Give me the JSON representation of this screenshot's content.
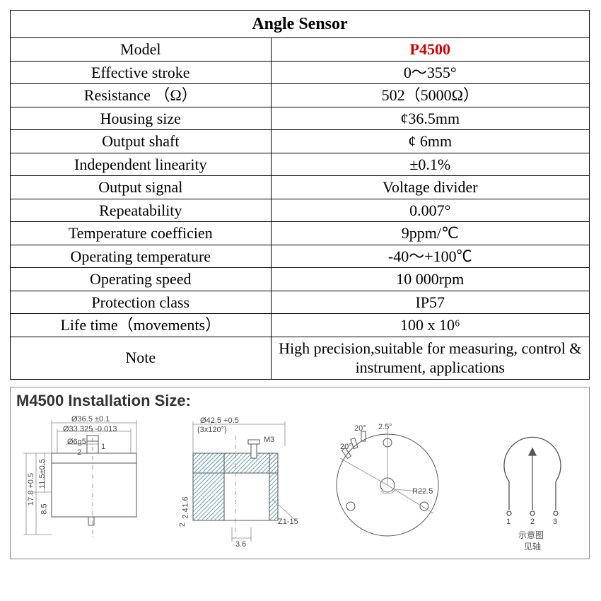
{
  "table": {
    "title": "Angle Sensor",
    "rows": [
      {
        "label": "Model",
        "value": "P4500",
        "model": true
      },
      {
        "label": "Effective stroke",
        "value": "0～355°"
      },
      {
        "label": "Resistance （Ω）",
        "value": "502（5000Ω）"
      },
      {
        "label": "Housing size",
        "value": "¢36.5mm"
      },
      {
        "label": "Output shaft",
        "value": "¢ 6mm"
      },
      {
        "label": "Independent linearity",
        "value": "±0.1%"
      },
      {
        "label": "Output signal",
        "value": "Voltage divider"
      },
      {
        "label": "Repeatability",
        "value": "0.007°"
      },
      {
        "label": "Temperature coefficien",
        "value": "9ppm/℃"
      },
      {
        "label": "Operating temperature",
        "value": "-40～+100℃"
      },
      {
        "label": "Operating speed",
        "value": "10 000rpm"
      },
      {
        "label": "Protection class",
        "value": "IP57"
      },
      {
        "label": "Life time（movements）",
        "value": "100 x 10⁶"
      }
    ],
    "note_label": "Note",
    "note_value": "High precision,suitable for measuring, control & instrument, applications"
  },
  "install": {
    "heading": "M4500 Installation Size:",
    "dwg_a": {
      "d_outer": "Ø36.5 ±0.1",
      "d_inner": "Ø33.325 -0.013",
      "shaft": "Ø6g5",
      "slot_w": "1",
      "slot_h": "2",
      "h_upper": "11.5±0.5",
      "h_total": "17.8 +0.5",
      "h_step": "8.5"
    },
    "dwg_b": {
      "bolt_circle": "Ø42.5 +0.5",
      "bolt_note": "(3x120°)",
      "thread": "M3",
      "z": "Z1-15",
      "depth": "3.6",
      "step1": "1.6",
      "step2": "2.4",
      "step3": "2"
    },
    "dwg_c": {
      "r": "R22.5",
      "ang_left": "20°",
      "ang_top": "2.5°",
      "ang_gap": "20°"
    },
    "dwg_d": {
      "pin1": "1",
      "pin2": "2",
      "pin3": "3",
      "cn1": "示意图",
      "cn2": "见轴"
    }
  },
  "colors": {
    "model": "#d40000",
    "border": "#000000",
    "dim_line": "#777777",
    "hatch": "#6fa0b8",
    "outline": "#444444"
  }
}
